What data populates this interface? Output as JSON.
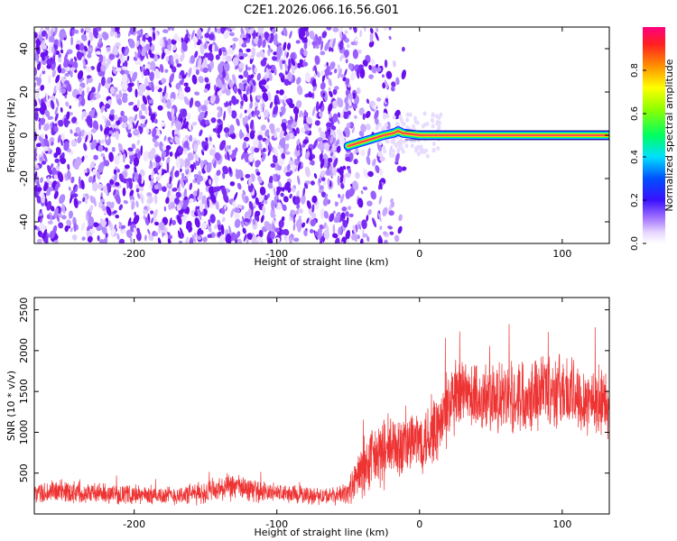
{
  "title": "C2E1.2026.066.16.56.G01",
  "colors": {
    "snr_line": "#ee3333",
    "spectrum_bg": "#ffffff",
    "noise_purple": "#6a1ff0",
    "line_core": "#ff2a6a"
  },
  "chart_data": [
    {
      "type": "heatmap",
      "panel": "spectrogram",
      "xlabel": "Height of straight line (km)",
      "ylabel": "Frequency (Hz)",
      "xlim": [
        -270,
        133
      ],
      "ylim": [
        -50,
        50
      ],
      "xticks": [
        -200,
        -100,
        0,
        100
      ],
      "yticks": [
        -40,
        -20,
        0,
        20,
        40
      ],
      "grid": false,
      "colorbar": {
        "label": "Normalized spectral amplitude",
        "range": [
          0.0,
          1.0
        ],
        "ticks": [
          0.0,
          0.2,
          0.4,
          0.6,
          0.8
        ]
      },
      "features": {
        "noise_region_x": [
          -270,
          -20
        ],
        "signal_line": [
          {
            "x": -50,
            "y": -5
          },
          {
            "x": -45,
            "y": -4
          },
          {
            "x": -40,
            "y": -3
          },
          {
            "x": -35,
            "y": -2
          },
          {
            "x": -30,
            "y": -1
          },
          {
            "x": -25,
            "y": 0
          },
          {
            "x": -18,
            "y": 1
          },
          {
            "x": -15,
            "y": 2
          },
          {
            "x": -12,
            "y": 1
          },
          {
            "x": 0,
            "y": 0
          },
          {
            "x": 133,
            "y": 0
          }
        ]
      }
    },
    {
      "type": "line",
      "panel": "snr",
      "xlabel": "Height of straight line (km)",
      "ylabel": "SNR (10 * v/v)",
      "xlim": [
        -270,
        133
      ],
      "ylim": [
        0,
        2650
      ],
      "xticks": [
        -200,
        -100,
        0,
        100
      ],
      "yticks": [
        500,
        1000,
        1500,
        2000,
        2500
      ],
      "grid": false,
      "series": [
        {
          "x": [
            -270,
            -250,
            -230,
            -210,
            -190,
            -170,
            -150,
            -140,
            -130,
            -120,
            -110,
            -100,
            -90,
            -80,
            -70,
            -60,
            -50,
            -45,
            -40,
            -35,
            -30,
            -25,
            -20,
            -15,
            -10,
            -5,
            0,
            5,
            10,
            15,
            20,
            25,
            30,
            40,
            50,
            60,
            70,
            80,
            90,
            100,
            110,
            120,
            133
          ],
          "y": [
            250,
            280,
            260,
            240,
            230,
            225,
            260,
            300,
            330,
            300,
            270,
            260,
            240,
            230,
            220,
            220,
            260,
            400,
            550,
            650,
            700,
            750,
            800,
            820,
            850,
            880,
            900,
            950,
            1000,
            1100,
            1300,
            1400,
            1450,
            1420,
            1400,
            1400,
            1450,
            1500,
            1550,
            1500,
            1450,
            1400,
            1350
          ],
          "spread": [
            130,
            140,
            120,
            110,
            110,
            110,
            140,
            150,
            160,
            140,
            120,
            110,
            110,
            110,
            100,
            100,
            130,
            250,
            350,
            380,
            400,
            420,
            400,
            380,
            380,
            380,
            380,
            400,
            420,
            420,
            450,
            450,
            430,
            420,
            420,
            420,
            430,
            440,
            450,
            440,
            430,
            420,
            420
          ]
        }
      ]
    }
  ]
}
